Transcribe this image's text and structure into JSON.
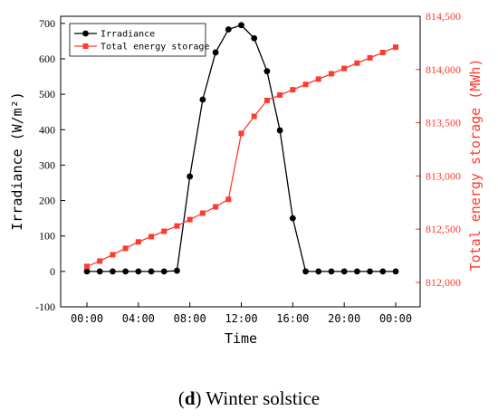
{
  "caption": {
    "letter": "d",
    "text": "Winter solstice"
  },
  "chart_data": {
    "type": "line",
    "xlabel": "Time",
    "x_ticks": [
      "00:00",
      "04:00",
      "08:00",
      "12:00",
      "16:00",
      "20:00",
      "00:00"
    ],
    "x": [
      "00:00",
      "01:00",
      "02:00",
      "03:00",
      "04:00",
      "05:00",
      "06:00",
      "07:00",
      "08:00",
      "09:00",
      "10:00",
      "11:00",
      "12:00",
      "13:00",
      "14:00",
      "15:00",
      "16:00",
      "17:00",
      "18:00",
      "19:00",
      "20:00",
      "21:00",
      "22:00",
      "23:00",
      "00:00"
    ],
    "y_left": {
      "label": "Irradiance (W/m²)",
      "range": [
        -100,
        720
      ],
      "ticks": [
        "-100",
        "0",
        "100",
        "200",
        "300",
        "400",
        "500",
        "600",
        "700"
      ],
      "color": "#000000"
    },
    "y_right": {
      "label": "Total energy storage (MWh)",
      "range": [
        811770,
        814500
      ],
      "ticks": [
        "812,000",
        "812,500",
        "813,000",
        "813,500",
        "814,000",
        "814,500"
      ],
      "color": "#ff3b30"
    },
    "series": [
      {
        "name": "Irradiance",
        "axis": "left",
        "color": "#000000",
        "marker": "circle",
        "values": [
          0,
          0,
          0,
          0,
          0,
          0,
          0,
          2,
          268,
          485,
          618,
          683,
          695,
          658,
          565,
          398,
          150,
          0,
          0,
          0,
          0,
          0,
          0,
          0,
          0
        ]
      },
      {
        "name": "Total energy storage",
        "axis": "right",
        "color": "#ff3b30",
        "marker": "square",
        "values": [
          812150,
          812200,
          812260,
          812320,
          812380,
          812430,
          812480,
          812530,
          812590,
          812650,
          812710,
          812780,
          813400,
          813560,
          813710,
          813760,
          813810,
          813860,
          813910,
          813960,
          814010,
          814060,
          814110,
          814160,
          814210
        ]
      }
    ],
    "legend_position": "top-left"
  }
}
